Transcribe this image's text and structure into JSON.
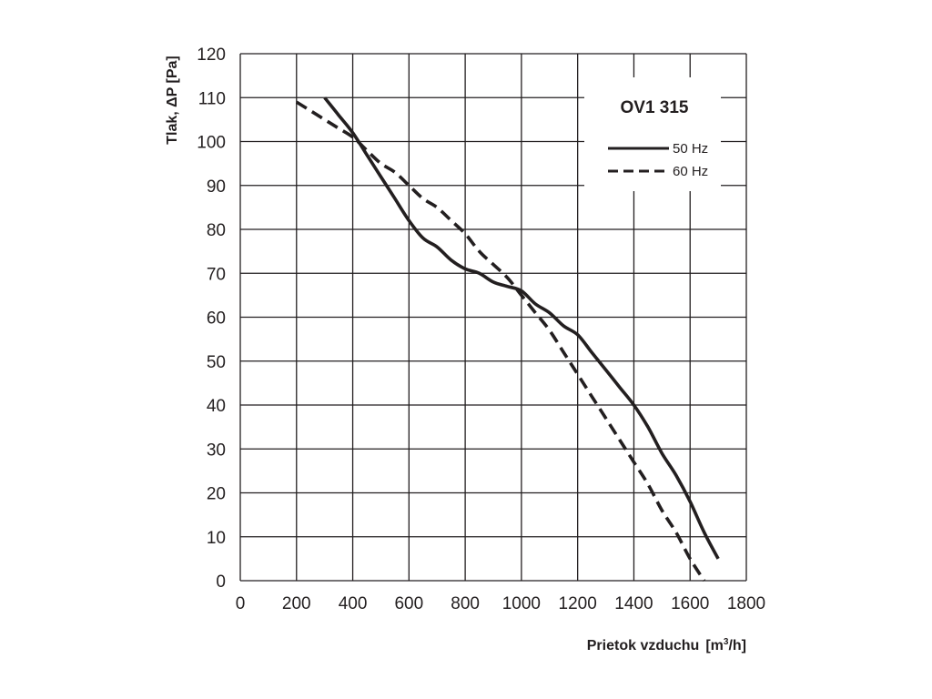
{
  "chart_data": {
    "type": "line",
    "title": "OV1 315",
    "xlabel": "Prietok vzduchu",
    "xlabel_unit_prefix": "[m",
    "xlabel_unit_sup": "3",
    "xlabel_unit_suffix": "/h]",
    "ylabel": "Tlak, ΔP [Pa]",
    "xlim": [
      0,
      1800
    ],
    "ylim": [
      0,
      120
    ],
    "x_ticks": [
      0,
      200,
      400,
      600,
      800,
      1000,
      1200,
      1400,
      1600,
      1800
    ],
    "y_ticks": [
      0,
      10,
      20,
      30,
      40,
      50,
      60,
      70,
      80,
      90,
      100,
      110,
      120
    ],
    "grid": true,
    "legend_position": "top-right",
    "series": [
      {
        "name": "50 Hz",
        "style": "solid",
        "x": [
          300,
          350,
          400,
          450,
          500,
          550,
          600,
          650,
          700,
          750,
          800,
          850,
          900,
          950,
          1000,
          1050,
          1100,
          1150,
          1200,
          1250,
          1300,
          1350,
          1400,
          1450,
          1500,
          1550,
          1600,
          1650,
          1700
        ],
        "y": [
          110,
          106,
          102,
          97,
          92,
          87,
          82,
          78,
          76,
          73,
          71,
          70,
          68,
          67,
          66,
          63,
          61,
          58,
          56,
          52,
          48,
          44,
          40,
          35,
          29,
          24,
          18,
          11,
          5
        ]
      },
      {
        "name": "60 Hz",
        "style": "dashed",
        "x": [
          200,
          250,
          300,
          350,
          400,
          450,
          500,
          550,
          600,
          650,
          700,
          750,
          800,
          850,
          900,
          950,
          1000,
          1050,
          1100,
          1150,
          1200,
          1250,
          1300,
          1350,
          1400,
          1450,
          1500,
          1550,
          1600,
          1650
        ],
        "y": [
          109,
          107,
          105,
          103,
          101,
          98,
          95,
          93,
          90,
          87,
          85,
          82,
          79,
          75,
          72,
          69,
          65,
          61,
          57,
          52,
          47,
          42,
          37,
          32,
          27,
          22,
          16,
          11,
          5,
          0
        ]
      }
    ]
  }
}
